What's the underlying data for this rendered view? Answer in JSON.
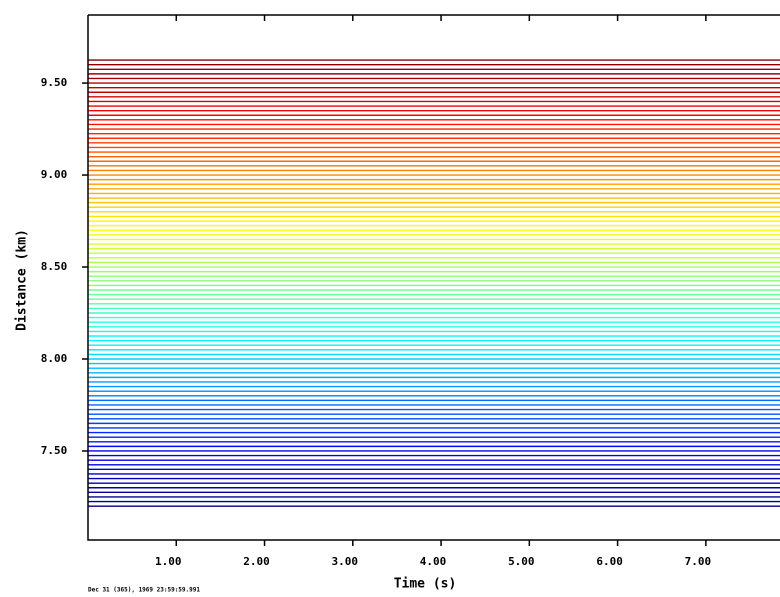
{
  "chart_data": {
    "type": "record-section",
    "x_label": "Time (s)",
    "y_label": "Distance (km)",
    "footer": "Dec 31 (365), 1969 23:59:59.991",
    "xlim": [
      0,
      7.84
    ],
    "ylim": [
      7.016,
      9.87
    ],
    "xticks": [
      {
        "value": 1,
        "label": "1.00"
      },
      {
        "value": 2,
        "label": "2.00"
      },
      {
        "value": 3,
        "label": "3.00"
      },
      {
        "value": 4,
        "label": "4.00"
      },
      {
        "value": 5,
        "label": "5.00"
      },
      {
        "value": 6,
        "label": "6.00"
      },
      {
        "value": 7,
        "label": "7.00"
      }
    ],
    "yticks": [
      {
        "value": 7.5,
        "label": "7.50"
      },
      {
        "value": 8,
        "label": "8.00"
      },
      {
        "value": 8.5,
        "label": "8.50"
      },
      {
        "value": 9,
        "label": "9.00"
      },
      {
        "value": 9.5,
        "label": "9.50"
      }
    ],
    "colormap": "jet",
    "trace_distances": [
      7.2,
      7.225,
      7.25,
      7.275,
      7.3,
      7.325,
      7.35,
      7.375,
      7.4,
      7.425,
      7.45,
      7.475,
      7.5,
      7.525,
      7.55,
      7.575,
      7.6,
      7.625,
      7.65,
      7.675,
      7.7,
      7.725,
      7.75,
      7.775,
      7.8,
      7.825,
      7.85,
      7.875,
      7.9,
      7.925,
      7.95,
      7.975,
      8.0,
      8.025,
      8.05,
      8.075,
      8.1,
      8.125,
      8.15,
      8.175,
      8.2,
      8.225,
      8.25,
      8.275,
      8.3,
      8.325,
      8.35,
      8.375,
      8.4,
      8.425,
      8.45,
      8.475,
      8.5,
      8.525,
      8.55,
      8.575,
      8.6,
      8.625,
      8.65,
      8.675,
      8.7,
      8.725,
      8.75,
      8.775,
      8.8,
      8.825,
      8.85,
      8.875,
      8.9,
      8.925,
      8.95,
      8.975,
      9.0,
      9.025,
      9.05,
      9.075,
      9.1,
      9.125,
      9.15,
      9.175,
      9.2,
      9.225,
      9.25,
      9.275,
      9.3,
      9.325,
      9.35,
      9.375,
      9.4,
      9.425,
      9.45,
      9.475,
      9.5,
      9.525,
      9.55,
      9.575,
      9.6,
      9.625
    ]
  }
}
